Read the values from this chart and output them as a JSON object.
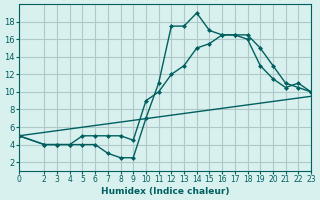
{
  "xlabel": "Humidex (Indice chaleur)",
  "bg_color": "#d8f0ee",
  "grid_color": "#b0c8c8",
  "line_color": "#006060",
  "xlim": [
    0,
    23
  ],
  "ylim": [
    1,
    20
  ],
  "yticks": [
    2,
    4,
    6,
    8,
    10,
    12,
    14,
    16,
    18
  ],
  "xticks": [
    0,
    2,
    3,
    4,
    5,
    6,
    7,
    8,
    9,
    10,
    11,
    12,
    13,
    14,
    15,
    16,
    17,
    18,
    19,
    20,
    21,
    22,
    23
  ],
  "line1_x": [
    0,
    2,
    3,
    4,
    5,
    6,
    7,
    8,
    9,
    10,
    11,
    12,
    13,
    14,
    15,
    16,
    17,
    18,
    19,
    20,
    21,
    22,
    23
  ],
  "line1_y": [
    5,
    4,
    4,
    4,
    4,
    4,
    3,
    2.5,
    2.5,
    7,
    11,
    17.5,
    17.5,
    19,
    17,
    16.5,
    16.5,
    16,
    13,
    11.5,
    10.5,
    11,
    10
  ],
  "line2_x": [
    0,
    2,
    3,
    4,
    5,
    6,
    7,
    8,
    9,
    10,
    11,
    12,
    13,
    14,
    15,
    16,
    17,
    18,
    19,
    20,
    21,
    22,
    23
  ],
  "line2_y": [
    5,
    4,
    4,
    4,
    5,
    5,
    5,
    5,
    4.5,
    9,
    10,
    12,
    13,
    15,
    15.5,
    16.5,
    16.5,
    16.5,
    15,
    13,
    11,
    10.5,
    10
  ],
  "line3_x": [
    0,
    23
  ],
  "line3_y": [
    5,
    9.5
  ]
}
